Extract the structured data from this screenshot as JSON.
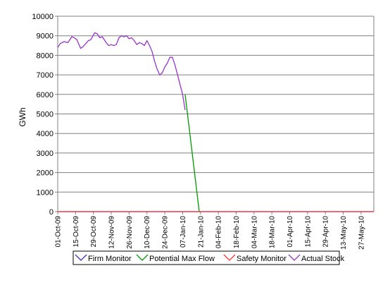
{
  "chart_data": {
    "type": "line",
    "ylabel": "GWh",
    "ylim": [
      0,
      10000
    ],
    "yticks": [
      0,
      1000,
      2000,
      3000,
      4000,
      5000,
      6000,
      7000,
      8000,
      9000,
      10000
    ],
    "xlim": [
      "2009-10-01",
      "2010-06-06"
    ],
    "xtick_labels": [
      "01-Oct-09",
      "15-Oct-09",
      "29-Oct-09",
      "12-Nov-09",
      "26-Nov-09",
      "10-Dec-09",
      "24-Dec-09",
      "07-Jan-10",
      "21-Jan-10",
      "04-Feb-10",
      "18-Feb-10",
      "04-Mar-10",
      "18-Mar-10",
      "01-Apr-10",
      "15-Apr-10",
      "29-Apr-10",
      "13-May-10",
      "27-May-10"
    ],
    "xticks": [
      "2009-10-01",
      "2009-10-15",
      "2009-10-29",
      "2009-11-12",
      "2009-11-26",
      "2009-12-10",
      "2009-12-24",
      "2010-01-07",
      "2010-01-21",
      "2010-02-04",
      "2010-02-18",
      "2010-03-04",
      "2010-03-18",
      "2010-04-01",
      "2010-04-15",
      "2010-04-29",
      "2010-05-13",
      "2010-05-27"
    ],
    "grid": "horizontal",
    "legend_position": "bottom",
    "series": [
      {
        "name": "Firm Monitor",
        "color": "#3333cc",
        "x": [
          "2009-10-01",
          "2010-06-06"
        ],
        "y": [
          0,
          0
        ]
      },
      {
        "name": "Potential Max Flow",
        "color": "#009900",
        "x": [
          "2010-01-09",
          "2010-01-20"
        ],
        "y": [
          6000,
          0
        ]
      },
      {
        "name": "Safety Monitor",
        "color": "#ff3333",
        "x": [
          "2009-10-01",
          "2010-06-06"
        ],
        "y": [
          0,
          0
        ]
      },
      {
        "name": "Actual Stock",
        "color": "#9933cc",
        "x": [
          "2009-10-01",
          "2009-10-03",
          "2009-10-06",
          "2009-10-09",
          "2009-10-12",
          "2009-10-14",
          "2009-10-16",
          "2009-10-19",
          "2009-10-21",
          "2009-10-23",
          "2009-10-25",
          "2009-10-27",
          "2009-10-30",
          "2009-11-01",
          "2009-11-03",
          "2009-11-05",
          "2009-11-08",
          "2009-11-10",
          "2009-11-12",
          "2009-11-14",
          "2009-11-16",
          "2009-11-18",
          "2009-11-20",
          "2009-11-22",
          "2009-11-24",
          "2009-11-26",
          "2009-11-28",
          "2009-11-30",
          "2009-12-02",
          "2009-12-04",
          "2009-12-06",
          "2009-12-08",
          "2009-12-10",
          "2009-12-12",
          "2009-12-14",
          "2009-12-16",
          "2009-12-18",
          "2009-12-20",
          "2009-12-22",
          "2009-12-24",
          "2009-12-26",
          "2009-12-28",
          "2009-12-30",
          "2010-01-01",
          "2010-01-03",
          "2010-01-05",
          "2010-01-07",
          "2010-01-09"
        ],
        "y": [
          8400,
          8600,
          8700,
          8650,
          8950,
          8900,
          8800,
          8350,
          8450,
          8600,
          8750,
          8800,
          9150,
          9100,
          8900,
          8950,
          8650,
          8500,
          8550,
          8500,
          8550,
          8900,
          9000,
          8950,
          9000,
          8850,
          8900,
          8750,
          8550,
          8650,
          8600,
          8500,
          8750,
          8500,
          8200,
          7700,
          7300,
          7000,
          7100,
          7400,
          7600,
          7900,
          7900,
          7500,
          7000,
          6500,
          6000,
          5200
        ]
      }
    ]
  }
}
